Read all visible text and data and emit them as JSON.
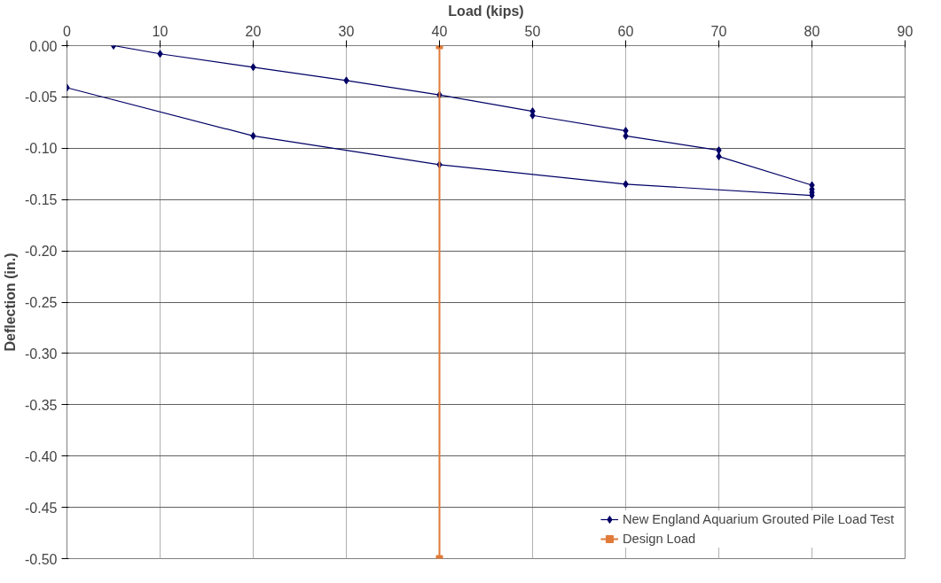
{
  "chart_data": {
    "type": "line",
    "xlabel": "Load (kips)",
    "ylabel": "Deflection (in.)",
    "xlim": [
      0,
      90
    ],
    "xticks": [
      0,
      10,
      20,
      30,
      40,
      50,
      60,
      70,
      80,
      90
    ],
    "ylim": [
      -0.5,
      0
    ],
    "yticks": [
      {
        "value": 0,
        "label": "0.00"
      },
      {
        "value": -0.05,
        "label": "-0.05"
      },
      {
        "value": -0.1,
        "label": "-0.10"
      },
      {
        "value": -0.15,
        "label": "-0.15"
      },
      {
        "value": -0.2,
        "label": "-0.20"
      },
      {
        "value": -0.25,
        "label": "-0.25"
      },
      {
        "value": -0.3,
        "label": "-0.30"
      },
      {
        "value": -0.35,
        "label": "-0.35"
      },
      {
        "value": -0.4,
        "label": "-0.40"
      },
      {
        "value": -0.45,
        "label": "-0.45"
      },
      {
        "value": -0.5,
        "label": "-0.50"
      }
    ],
    "grid": true,
    "legend": "bottom right",
    "line_style": "solid",
    "series": [
      {
        "name": "New England Aquarium Grouted Pile Load Test",
        "color": "#000066",
        "marker": "diamond",
        "x": [
          5,
          10,
          20,
          30,
          40,
          50,
          50,
          60,
          60,
          70,
          70,
          80,
          80,
          80,
          80,
          60,
          40,
          20,
          0
        ],
        "values": [
          0,
          -0.008,
          -0.021,
          -0.034,
          -0.048,
          -0.064,
          -0.068,
          -0.083,
          -0.088,
          -0.102,
          -0.108,
          -0.136,
          -0.14,
          -0.143,
          -0.146,
          -0.135,
          -0.116,
          -0.088,
          -0.041
        ]
      },
      {
        "name": "Design Load",
        "color": "#e07b39",
        "marker": "square",
        "x": [
          40,
          40
        ],
        "values": [
          0,
          -0.5
        ]
      }
    ]
  }
}
